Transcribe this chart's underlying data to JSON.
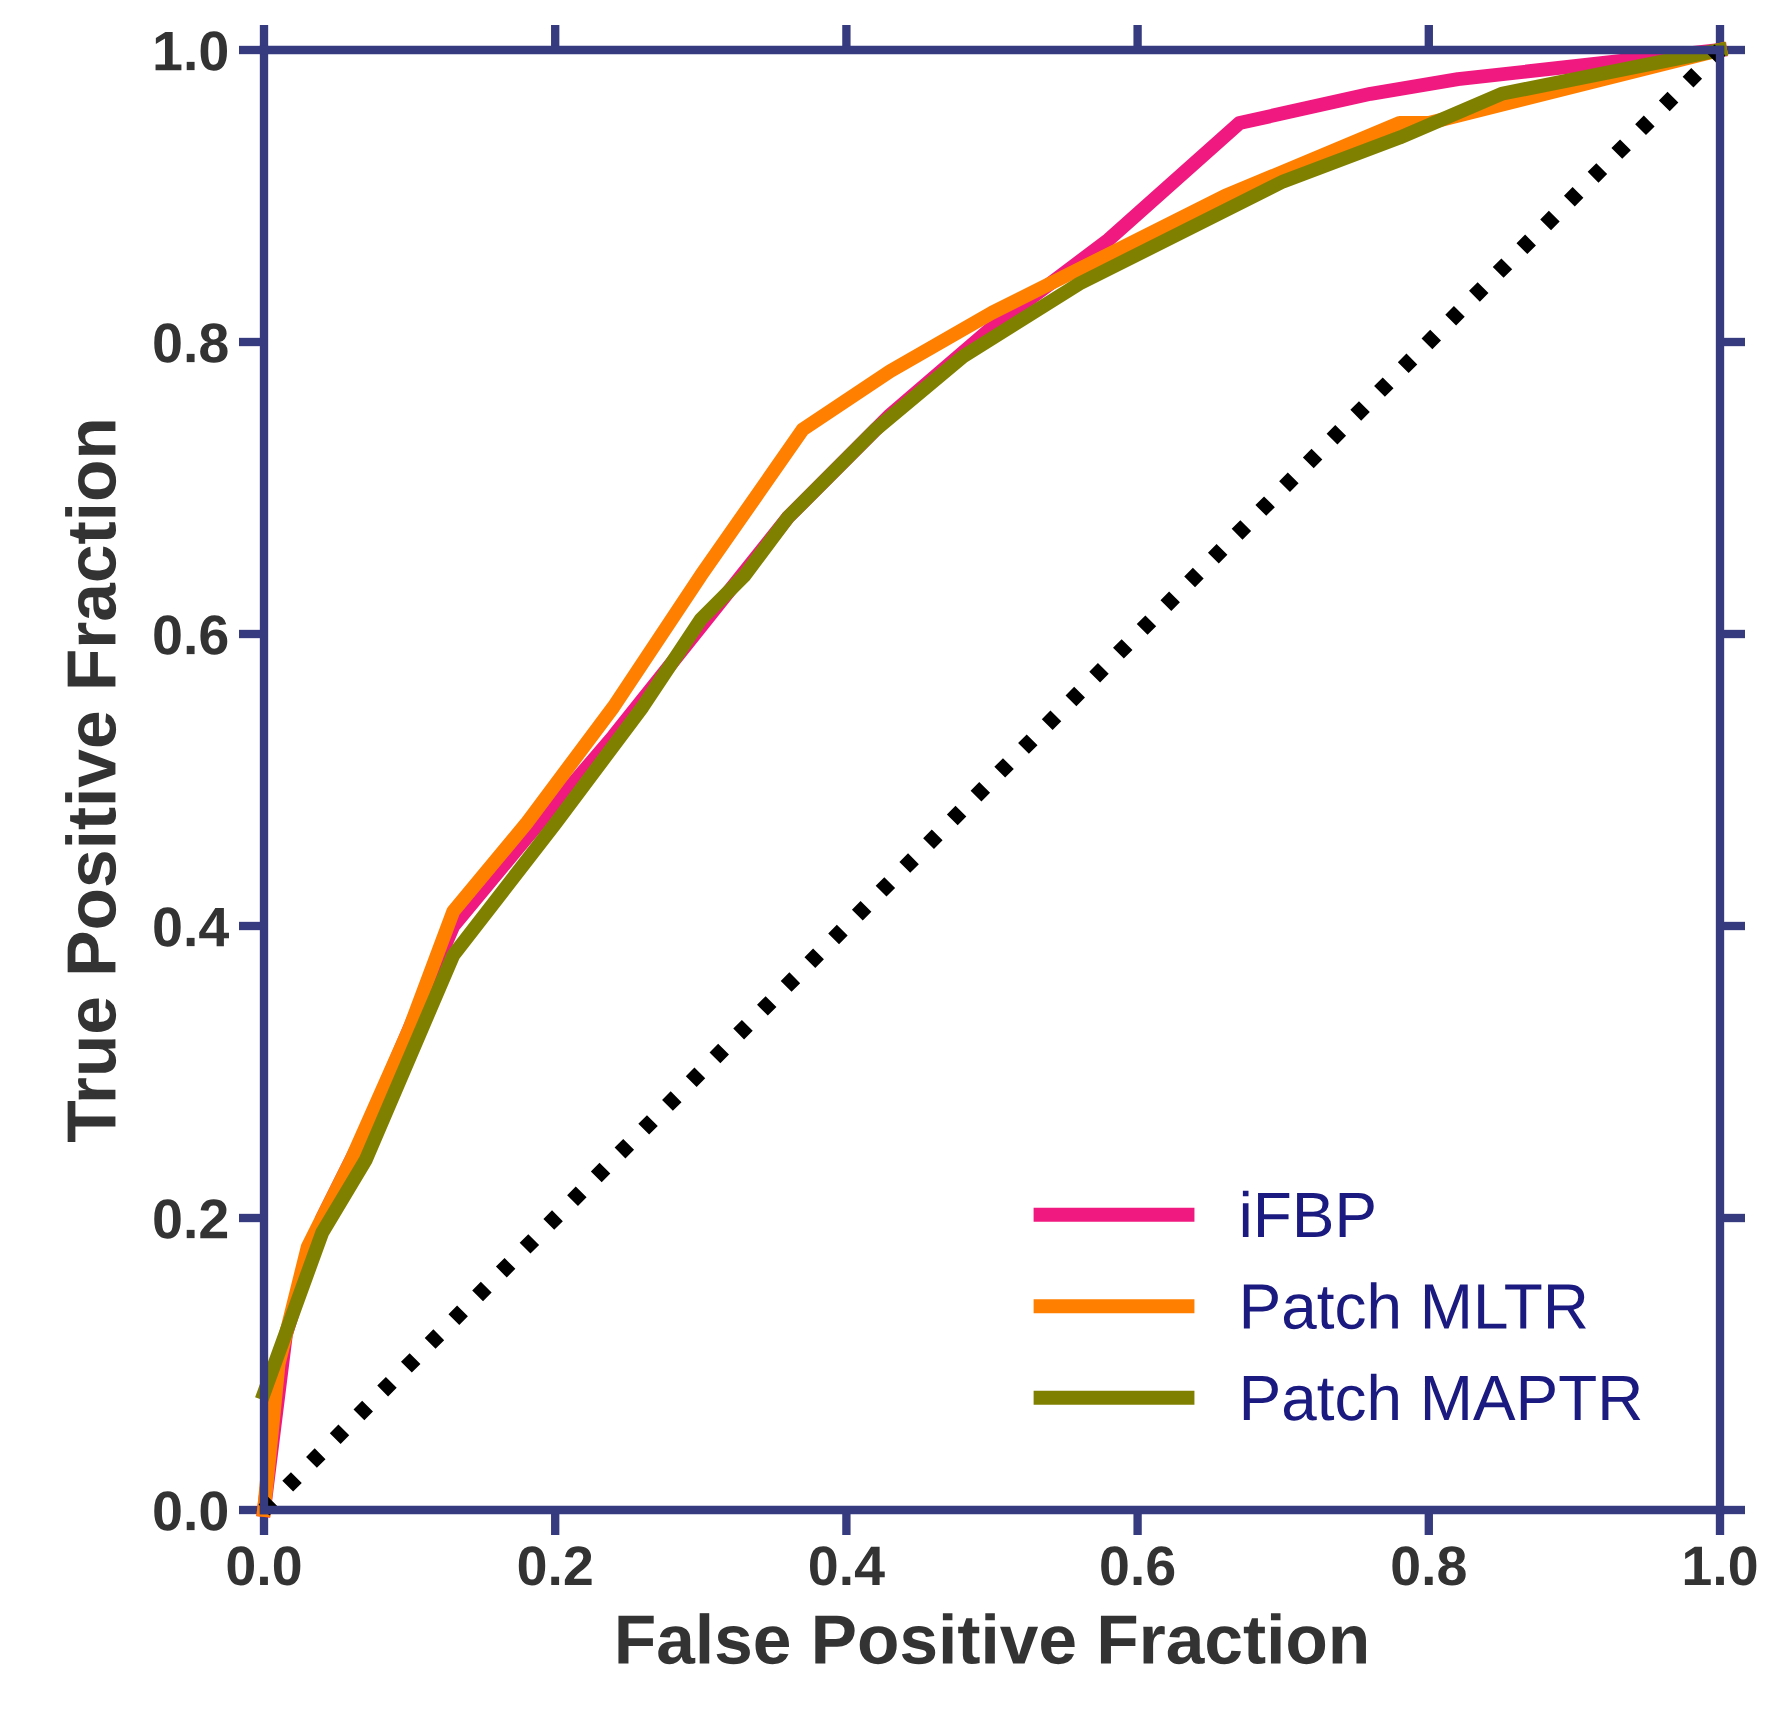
{
  "chart_data": {
    "type": "line",
    "xlabel": "False Positive Fraction",
    "ylabel": "True Positive Fraction",
    "xlim": [
      0,
      1
    ],
    "ylim": [
      0,
      1
    ],
    "xticks": [
      {
        "value": 0,
        "label": "0.0"
      },
      {
        "value": 0.2,
        "label": "0.2"
      },
      {
        "value": 0.4,
        "label": "0.4"
      },
      {
        "value": 0.6,
        "label": "0.6"
      },
      {
        "value": 0.8,
        "label": "0.8"
      },
      {
        "value": 1,
        "label": "1.0"
      }
    ],
    "yticks": [
      {
        "value": 0,
        "label": "0.0"
      },
      {
        "value": 0.2,
        "label": "0.2"
      },
      {
        "value": 0.4,
        "label": "0.4"
      },
      {
        "value": 0.6,
        "label": "0.6"
      },
      {
        "value": 0.8,
        "label": "0.8"
      },
      {
        "value": 1,
        "label": "1.0"
      }
    ],
    "grid": false,
    "legend": "bottom right",
    "marker": "none",
    "line_style": "solid",
    "series": [
      {
        "name": "iFBP",
        "color": "#f0197f",
        "x": [
          0,
          0.015,
          0.04,
          0.07,
          0.1,
          0.13,
          0.18,
          0.24,
          0.28,
          0.32,
          0.36,
          0.43,
          0.5,
          0.58,
          0.67,
          0.76,
          0.82,
          1
        ],
        "values": [
          0,
          0.12,
          0.2,
          0.26,
          0.33,
          0.4,
          0.46,
          0.53,
          0.58,
          0.63,
          0.68,
          0.75,
          0.81,
          0.87,
          0.95,
          0.97,
          0.98,
          1
        ]
      },
      {
        "name": "Patch MLTR",
        "color": "#ff7f00",
        "x": [
          0,
          0.01,
          0.03,
          0.06,
          0.1,
          0.13,
          0.18,
          0.24,
          0.3,
          0.37,
          0.43,
          0.5,
          0.58,
          0.66,
          0.78,
          0.8,
          1
        ],
        "values": [
          0,
          0.1,
          0.18,
          0.24,
          0.33,
          0.41,
          0.47,
          0.55,
          0.64,
          0.74,
          0.78,
          0.82,
          0.86,
          0.9,
          0.95,
          0.95,
          1
        ]
      },
      {
        "name": "Patch MAPTR",
        "color": "#808000",
        "x": [
          0,
          0.04,
          0.07,
          0.13,
          0.2,
          0.26,
          0.3,
          0.33,
          0.36,
          0.42,
          0.48,
          0.56,
          0.7,
          0.78,
          0.85,
          1
        ],
        "values": [
          0.08,
          0.19,
          0.24,
          0.38,
          0.47,
          0.55,
          0.61,
          0.64,
          0.68,
          0.74,
          0.79,
          0.84,
          0.91,
          0.94,
          0.97,
          1
        ]
      },
      {
        "color": "#000000",
        "line_style": "dotted",
        "x": [
          0,
          1
        ],
        "values": [
          0,
          1
        ]
      }
    ]
  }
}
